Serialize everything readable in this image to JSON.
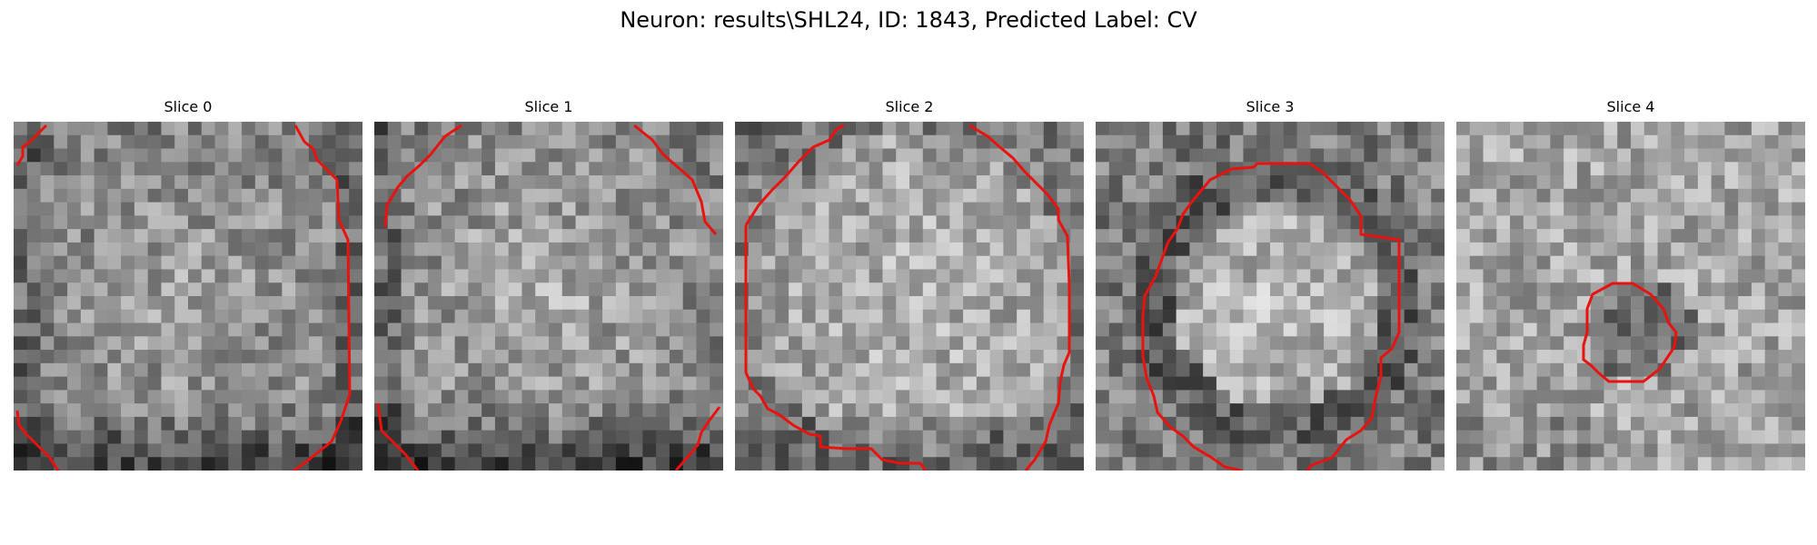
{
  "figure": {
    "title": "Neuron: results\\SHL24, ID: 1843, Predicted Label: CV"
  },
  "panels": [
    {
      "title": "Slice 0",
      "contour": "edge-arcs"
    },
    {
      "title": "Slice 1",
      "contour": "edge-arcs"
    },
    {
      "title": "Slice 2",
      "contour": "large-outline"
    },
    {
      "title": "Slice 3",
      "contour": "medium-outline"
    },
    {
      "title": "Slice 4",
      "contour": "small-outline"
    }
  ],
  "colors": {
    "contour": "#e8120f",
    "background": "#ffffff"
  },
  "image": {
    "colormap": "grayscale",
    "grid": "pixelated noise, approx. 26x26 per slice"
  }
}
